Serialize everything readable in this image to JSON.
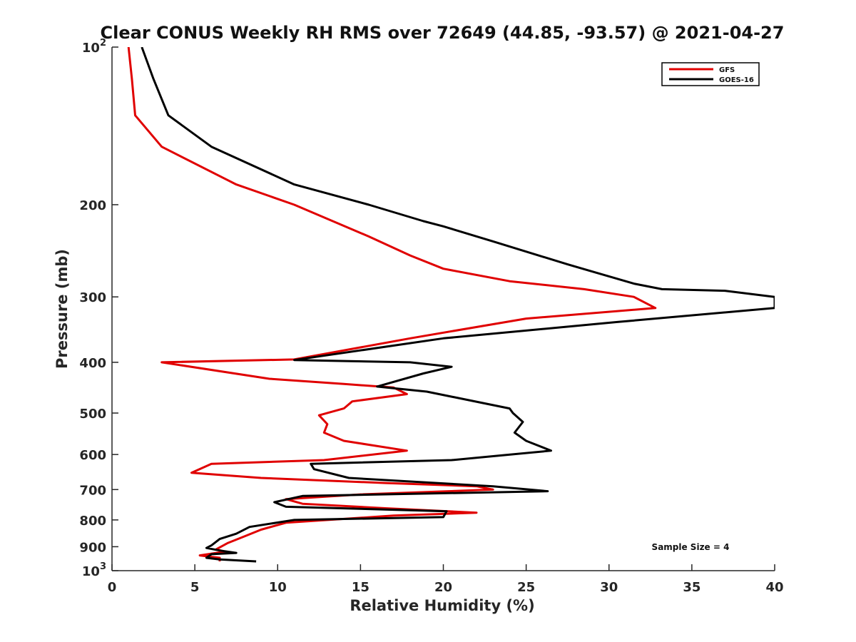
{
  "chart_data": {
    "type": "line",
    "title": "Clear CONUS Weekly RH RMS over 72649 (44.85, -93.57) @ 2021-04-27",
    "xlabel": "Relative Humidity (%)",
    "ylabel": "Pressure (mb)",
    "xlim": [
      0,
      40
    ],
    "ylim": [
      100,
      1000
    ],
    "y_scale": "log",
    "y_reversed": true,
    "x_ticks": [
      0,
      5,
      10,
      15,
      20,
      25,
      30,
      35,
      40
    ],
    "x_tick_labels": [
      "0",
      "5",
      "10",
      "15",
      "20",
      "25",
      "30",
      "35",
      "40"
    ],
    "y_ticks": [
      100,
      200,
      300,
      400,
      500,
      600,
      700,
      800,
      900,
      1000
    ],
    "y_tick_labels": [
      {
        "base": "10",
        "exp": "2"
      },
      {
        "base": "200"
      },
      {
        "base": "300"
      },
      {
        "base": "400"
      },
      {
        "base": "500"
      },
      {
        "base": "600"
      },
      {
        "base": "700"
      },
      {
        "base": "800"
      },
      {
        "base": "900"
      },
      {
        "base": "10",
        "exp": "3"
      }
    ],
    "grid": false,
    "legend_position": "top-right",
    "annotation": "Sample Size = 4",
    "series": [
      {
        "name": "GFS",
        "color": "#e00000",
        "points": [
          [
            1.0,
            100
          ],
          [
            1.2,
            115
          ],
          [
            1.4,
            135
          ],
          [
            3.0,
            155
          ],
          [
            7.5,
            183
          ],
          [
            11.0,
            200
          ],
          [
            15.5,
            230
          ],
          [
            18.0,
            250
          ],
          [
            20.0,
            265
          ],
          [
            24.0,
            280
          ],
          [
            28.5,
            290
          ],
          [
            31.5,
            300
          ],
          [
            32.8,
            315
          ],
          [
            25.0,
            330
          ],
          [
            18.0,
            360
          ],
          [
            11.0,
            395
          ],
          [
            3.0,
            400
          ],
          [
            9.5,
            430
          ],
          [
            14.0,
            440
          ],
          [
            17.0,
            447
          ],
          [
            17.8,
            460
          ],
          [
            14.5,
            475
          ],
          [
            14.0,
            490
          ],
          [
            12.5,
            505
          ],
          [
            13.0,
            525
          ],
          [
            12.8,
            545
          ],
          [
            14.0,
            565
          ],
          [
            17.8,
            590
          ],
          [
            12.8,
            615
          ],
          [
            6.0,
            625
          ],
          [
            4.8,
            650
          ],
          [
            9.0,
            665
          ],
          [
            16.5,
            680
          ],
          [
            22.0,
            690
          ],
          [
            23.0,
            700
          ],
          [
            15.0,
            715
          ],
          [
            10.5,
            730
          ],
          [
            11.5,
            745
          ],
          [
            16.5,
            760
          ],
          [
            22.0,
            775
          ],
          [
            17.0,
            785
          ],
          [
            10.5,
            810
          ],
          [
            9.0,
            835
          ],
          [
            8.0,
            860
          ],
          [
            7.0,
            885
          ],
          [
            6.3,
            910
          ],
          [
            6.8,
            920
          ],
          [
            5.3,
            935
          ],
          [
            6.5,
            945
          ],
          [
            6.5,
            960
          ]
        ]
      },
      {
        "name": "GOES-16",
        "color": "#000000",
        "points": [
          [
            1.8,
            100
          ],
          [
            2.5,
            115
          ],
          [
            3.4,
            135
          ],
          [
            6.0,
            155
          ],
          [
            11.0,
            183
          ],
          [
            15.5,
            200
          ],
          [
            18.8,
            215
          ],
          [
            20.0,
            220
          ],
          [
            23.0,
            235
          ],
          [
            27.5,
            260
          ],
          [
            31.5,
            283
          ],
          [
            33.2,
            290
          ],
          [
            37.0,
            292
          ],
          [
            40.0,
            300
          ],
          [
            40.0,
            315
          ],
          [
            30.5,
            335
          ],
          [
            20.0,
            360
          ],
          [
            11.0,
            396
          ],
          [
            18.0,
            400
          ],
          [
            20.5,
            408
          ],
          [
            18.8,
            420
          ],
          [
            16.0,
            445
          ],
          [
            19.0,
            455
          ],
          [
            24.0,
            490
          ],
          [
            24.2,
            500
          ],
          [
            24.8,
            520
          ],
          [
            24.3,
            545
          ],
          [
            25.0,
            565
          ],
          [
            26.5,
            590
          ],
          [
            20.5,
            615
          ],
          [
            12.0,
            625
          ],
          [
            12.2,
            640
          ],
          [
            14.3,
            665
          ],
          [
            23.0,
            690
          ],
          [
            26.3,
            705
          ],
          [
            11.5,
            720
          ],
          [
            9.8,
            740
          ],
          [
            10.5,
            755
          ],
          [
            20.2,
            770
          ],
          [
            20.0,
            790
          ],
          [
            11.0,
            800
          ],
          [
            8.3,
            825
          ],
          [
            7.5,
            850
          ],
          [
            6.5,
            870
          ],
          [
            6.0,
            895
          ],
          [
            5.7,
            905
          ],
          [
            6.5,
            915
          ],
          [
            7.5,
            925
          ],
          [
            6.0,
            930
          ],
          [
            5.7,
            945
          ],
          [
            6.5,
            952
          ],
          [
            8.7,
            960
          ]
        ]
      }
    ]
  }
}
